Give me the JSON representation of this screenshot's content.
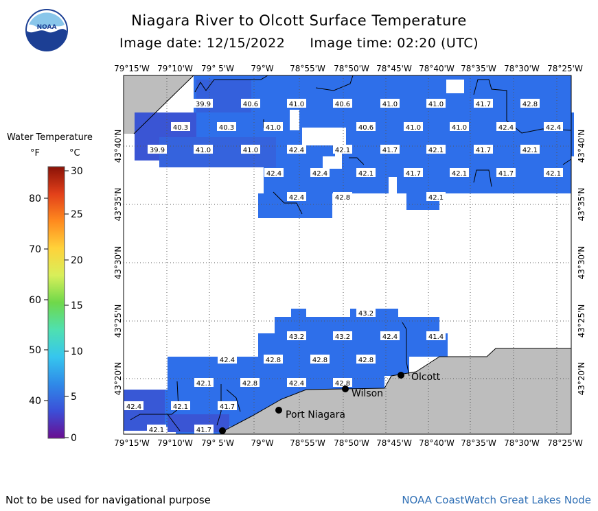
{
  "header": {
    "title": "Niagara River to Olcott Surface Temperature",
    "date_label": "Image date: 12/15/2022",
    "time_label": "Image time: 02:20 (UTC)"
  },
  "logo": {
    "text": "NOAA"
  },
  "legend": {
    "title": "Water Temperature",
    "unit_f": "°F",
    "unit_c": "°C",
    "f_ticks": [
      "40",
      "50",
      "60",
      "70",
      "80"
    ],
    "c_ticks": [
      "0",
      "5",
      "10",
      "15",
      "20",
      "25",
      "30"
    ]
  },
  "axes": {
    "lon_labels": [
      "79°15'W",
      "79°10'W",
      "79° 5'W",
      "79°W",
      "78°55'W",
      "78°50'W",
      "78°45'W",
      "78°40'W",
      "78°35'W",
      "78°30'W",
      "78°25'W"
    ],
    "lat_labels": [
      "43°20'N",
      "43°25'N",
      "43°30'N",
      "43°35'N",
      "43°40'N"
    ]
  },
  "places": [
    "Olcott",
    "Wilson",
    "Port Niagara"
  ],
  "temps": [
    "39.9",
    "40.6",
    "41.0",
    "40.6",
    "41.0",
    "41.0",
    "41.7",
    "42.8",
    "40.3",
    "40.3",
    "41.0",
    "40.6",
    "41.0",
    "41.0",
    "42.4",
    "42.4",
    "39.9",
    "41.0",
    "41.0",
    "42.4",
    "42.1",
    "41.7",
    "42.1",
    "41.7",
    "42.1",
    "42.4",
    "42.4",
    "42.1",
    "41.7",
    "42.1",
    "41.7",
    "42.1",
    "42.4",
    "42.8",
    "42.1",
    "43.2",
    "43.2",
    "43.2",
    "42.4",
    "41.4",
    "42.4",
    "42.8",
    "42.8",
    "42.8",
    "42.1",
    "42.8",
    "42.4",
    "42.8",
    "42.4",
    "42.1",
    "41.7",
    "42.1",
    "41.7"
  ],
  "footer": {
    "left": "Not to be used for navigational purpose",
    "right": "NOAA CoastWatch Great Lakes Node"
  }
}
